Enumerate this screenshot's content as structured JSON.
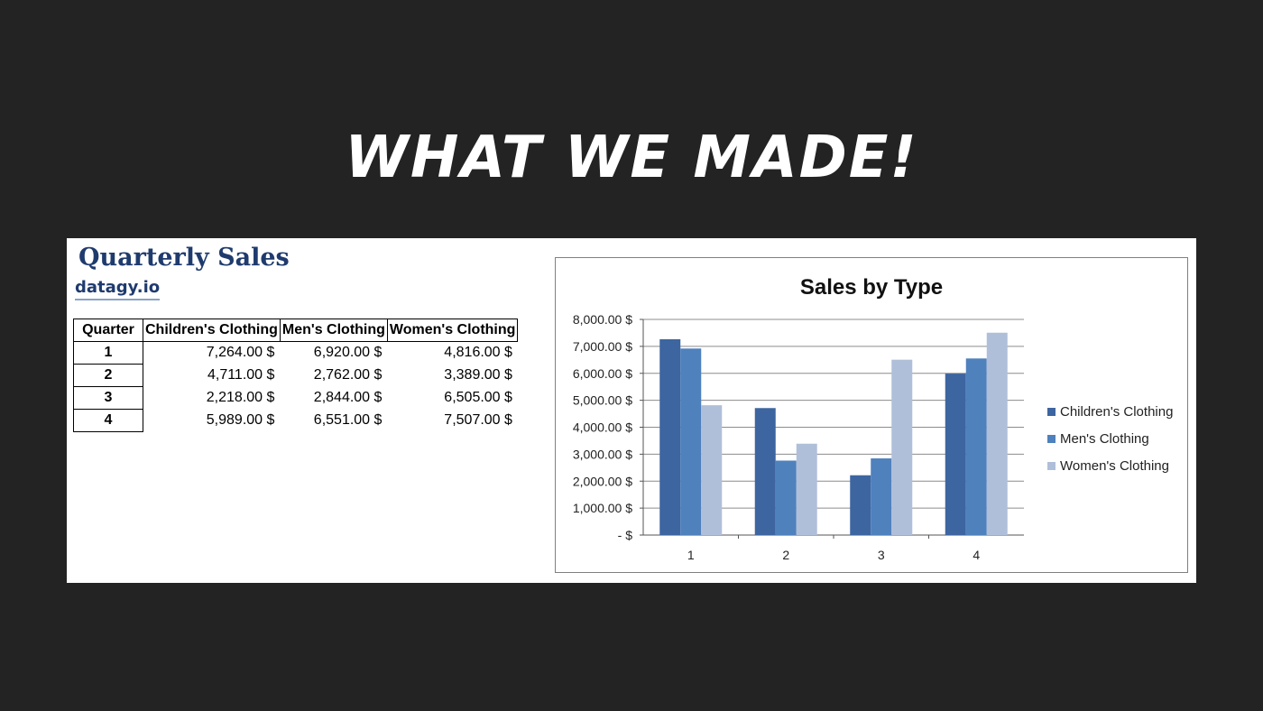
{
  "slide": {
    "title": "WHAT WE MADE!"
  },
  "sheet": {
    "title": "Quarterly Sales",
    "subtitle": "datagy.io"
  },
  "table": {
    "headers": [
      "Quarter",
      "Children's Clothing",
      "Men's Clothing",
      "Women's Clothing"
    ],
    "rows": [
      [
        "1",
        "7,264.00 $",
        "6,920.00 $",
        "4,816.00 $"
      ],
      [
        "2",
        "4,711.00 $",
        "2,762.00 $",
        "3,389.00 $"
      ],
      [
        "3",
        "2,218.00 $",
        "2,844.00 $",
        "6,505.00 $"
      ],
      [
        "4",
        "5,989.00 $",
        "6,551.00 $",
        "7,507.00 $"
      ]
    ]
  },
  "chart_data": {
    "type": "bar",
    "title": "Sales by Type",
    "categories": [
      "1",
      "2",
      "3",
      "4"
    ],
    "series": [
      {
        "name": "Children's Clothing",
        "values": [
          7264,
          4711,
          2218,
          5989
        ],
        "color": "#3d65a0"
      },
      {
        "name": "Men's Clothing",
        "values": [
          6920,
          2762,
          2844,
          6551
        ],
        "color": "#4f81bd"
      },
      {
        "name": "Women's Clothing",
        "values": [
          4816,
          3389,
          6505,
          7507
        ],
        "color": "#b0bfd9"
      }
    ],
    "ylim": [
      0,
      8000
    ],
    "yticks": [
      0,
      1000,
      2000,
      3000,
      4000,
      5000,
      6000,
      7000,
      8000
    ],
    "ytick_labels": [
      "-  $",
      "1,000.00 $",
      "2,000.00 $",
      "3,000.00 $",
      "4,000.00 $",
      "5,000.00 $",
      "6,000.00 $",
      "7,000.00 $",
      "8,000.00 $"
    ],
    "grid": true,
    "legend_position": "right"
  }
}
